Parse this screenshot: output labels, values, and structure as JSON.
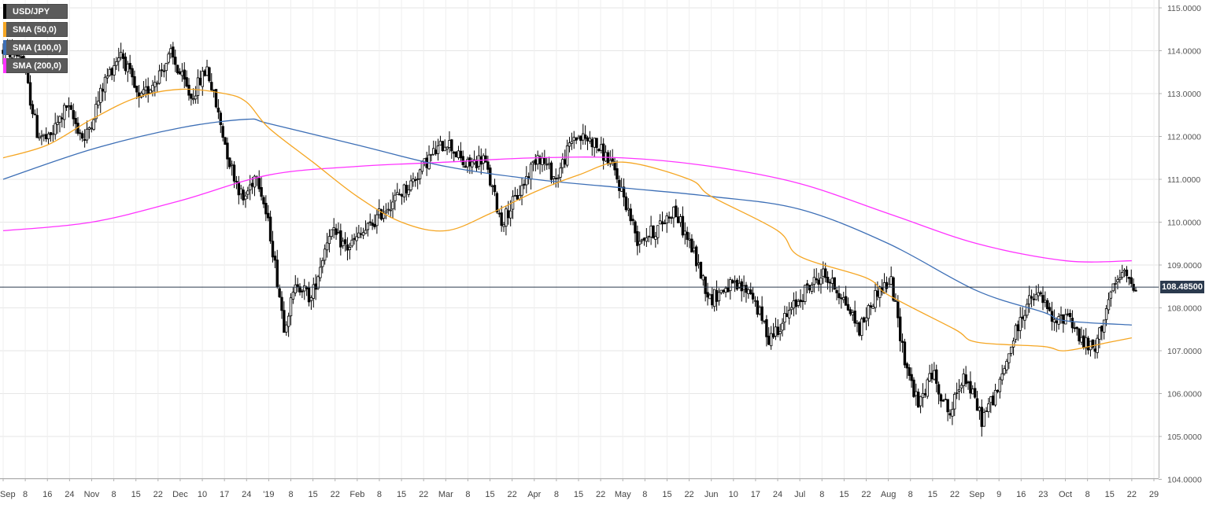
{
  "chart_data": {
    "type": "candlestick",
    "symbol": "USD/JPY",
    "timeframe": "daily",
    "legend": [
      {
        "label": "USD/JPY",
        "color": "#000000"
      },
      {
        "label": "SMA (50,0)",
        "color": "#f5a623"
      },
      {
        "label": "SMA (100,0)",
        "color": "#3d6fb6"
      },
      {
        "label": "SMA (200,0)",
        "color": "#ff33ff"
      }
    ],
    "legend_placement": "top-left",
    "y_axis": {
      "position": "right",
      "min": 104.0,
      "max": 115.0,
      "ticks": [
        "115.0000",
        "114.0000",
        "113.0000",
        "112.0000",
        "111.0000",
        "110.0000",
        "109.0000",
        "108.0000",
        "107.0000",
        "106.0000",
        "105.0000",
        "104.0000"
      ]
    },
    "x_axis": {
      "tick_labels": [
        "Sep",
        "8",
        "16",
        "24",
        "Nov",
        "8",
        "15",
        "22",
        "Dec",
        "10",
        "17",
        "24",
        "'19",
        "8",
        "15",
        "22",
        "Feb",
        "8",
        "15",
        "22",
        "Mar",
        "8",
        "15",
        "22",
        "Apr",
        "8",
        "15",
        "22",
        "May",
        "8",
        "15",
        "22",
        "Jun",
        "10",
        "17",
        "24",
        "Jul",
        "8",
        "15",
        "22",
        "Aug",
        "8",
        "15",
        "22",
        "Sep",
        "9",
        "16",
        "23",
        "Oct",
        "8",
        "15",
        "22",
        "29"
      ]
    },
    "grid": true,
    "current_price": "108.48500",
    "current_price_value": 108.485,
    "series": {
      "price_path": [
        {
          "i": 0,
          "v": 114.0
        },
        {
          "i": 8,
          "v": 113.9
        },
        {
          "i": 15,
          "v": 112.1
        },
        {
          "i": 20,
          "v": 111.9
        },
        {
          "i": 28,
          "v": 112.7
        },
        {
          "i": 36,
          "v": 111.9
        },
        {
          "i": 45,
          "v": 113.3
        },
        {
          "i": 52,
          "v": 114.0
        },
        {
          "i": 60,
          "v": 112.8
        },
        {
          "i": 68,
          "v": 113.4
        },
        {
          "i": 74,
          "v": 113.9
        },
        {
          "i": 83,
          "v": 112.9
        },
        {
          "i": 90,
          "v": 113.6
        },
        {
          "i": 100,
          "v": 111.4
        },
        {
          "i": 106,
          "v": 110.5
        },
        {
          "i": 112,
          "v": 111.2
        },
        {
          "i": 118,
          "v": 109.7
        },
        {
          "i": 124,
          "v": 107.6
        },
        {
          "i": 130,
          "v": 108.6
        },
        {
          "i": 136,
          "v": 108.2
        },
        {
          "i": 144,
          "v": 109.8
        },
        {
          "i": 152,
          "v": 109.4
        },
        {
          "i": 162,
          "v": 109.9
        },
        {
          "i": 170,
          "v": 110.4
        },
        {
          "i": 180,
          "v": 110.9
        },
        {
          "i": 188,
          "v": 111.5
        },
        {
          "i": 196,
          "v": 111.9
        },
        {
          "i": 204,
          "v": 111.3
        },
        {
          "i": 212,
          "v": 111.5
        },
        {
          "i": 220,
          "v": 110.0
        },
        {
          "i": 228,
          "v": 110.7
        },
        {
          "i": 236,
          "v": 111.6
        },
        {
          "i": 244,
          "v": 111.0
        },
        {
          "i": 252,
          "v": 112.0
        },
        {
          "i": 260,
          "v": 111.9
        },
        {
          "i": 268,
          "v": 111.4
        },
        {
          "i": 274,
          "v": 110.6
        },
        {
          "i": 280,
          "v": 109.6
        },
        {
          "i": 288,
          "v": 109.8
        },
        {
          "i": 296,
          "v": 110.3
        },
        {
          "i": 304,
          "v": 109.4
        },
        {
          "i": 312,
          "v": 108.2
        },
        {
          "i": 320,
          "v": 108.5
        },
        {
          "i": 330,
          "v": 108.4
        },
        {
          "i": 338,
          "v": 107.3
        },
        {
          "i": 346,
          "v": 107.8
        },
        {
          "i": 354,
          "v": 108.4
        },
        {
          "i": 362,
          "v": 108.8
        },
        {
          "i": 370,
          "v": 108.3
        },
        {
          "i": 378,
          "v": 107.5
        },
        {
          "i": 386,
          "v": 108.4
        },
        {
          "i": 392,
          "v": 108.6
        },
        {
          "i": 398,
          "v": 106.8
        },
        {
          "i": 404,
          "v": 105.7
        },
        {
          "i": 410,
          "v": 106.5
        },
        {
          "i": 418,
          "v": 105.5
        },
        {
          "i": 424,
          "v": 106.5
        },
        {
          "i": 432,
          "v": 105.4
        },
        {
          "i": 440,
          "v": 106.2
        },
        {
          "i": 446,
          "v": 107.3
        },
        {
          "i": 452,
          "v": 108.1
        },
        {
          "i": 458,
          "v": 108.3
        },
        {
          "i": 464,
          "v": 107.6
        },
        {
          "i": 470,
          "v": 107.9
        },
        {
          "i": 476,
          "v": 107.2
        },
        {
          "i": 482,
          "v": 107.0
        },
        {
          "i": 488,
          "v": 108.2
        },
        {
          "i": 494,
          "v": 108.8
        },
        {
          "i": 500,
          "v": 108.5
        }
      ],
      "sma_50": [
        {
          "x": "Sep",
          "y": 111.5
        },
        {
          "x": "16",
          "y": 111.8
        },
        {
          "x": "Nov",
          "y": 112.4
        },
        {
          "x": "15",
          "y": 112.9
        },
        {
          "x": "Dec",
          "y": 113.1
        },
        {
          "x": "17",
          "y": 113.0
        },
        {
          "x": "24",
          "y": 112.8
        },
        {
          "x": "'19",
          "y": 112.2
        },
        {
          "x": "15",
          "y": 111.4
        },
        {
          "x": "Feb",
          "y": 110.6
        },
        {
          "x": "15",
          "y": 110.0
        },
        {
          "x": "Mar",
          "y": 109.8
        },
        {
          "x": "15",
          "y": 110.2
        },
        {
          "x": "Apr",
          "y": 110.7
        },
        {
          "x": "15",
          "y": 111.1
        },
        {
          "x": "May",
          "y": 111.4
        },
        {
          "x": "22",
          "y": 111.0
        },
        {
          "x": "Jun",
          "y": 110.6
        },
        {
          "x": "24",
          "y": 109.8
        },
        {
          "x": "Jul",
          "y": 109.2
        },
        {
          "x": "22",
          "y": 108.7
        },
        {
          "x": "Aug",
          "y": 108.3
        },
        {
          "x": "22",
          "y": 107.5
        },
        {
          "x": "Sep",
          "y": 107.2
        },
        {
          "x": "23",
          "y": 107.1
        },
        {
          "x": "Oct",
          "y": 107.0
        },
        {
          "x": "15",
          "y": 107.2
        },
        {
          "x": "22",
          "y": 107.3
        }
      ],
      "sma_100": [
        {
          "x": "Sep",
          "y": 111.0
        },
        {
          "x": "Nov",
          "y": 111.7
        },
        {
          "x": "Dec",
          "y": 112.2
        },
        {
          "x": "24",
          "y": 112.4
        },
        {
          "x": "'19",
          "y": 112.3
        },
        {
          "x": "Feb",
          "y": 111.8
        },
        {
          "x": "Mar",
          "y": 111.3
        },
        {
          "x": "Apr",
          "y": 111.0
        },
        {
          "x": "May",
          "y": 110.8
        },
        {
          "x": "Jun",
          "y": 110.6
        },
        {
          "x": "Jul",
          "y": 110.3
        },
        {
          "x": "Aug",
          "y": 109.5
        },
        {
          "x": "Sep",
          "y": 108.4
        },
        {
          "x": "23",
          "y": 107.9
        },
        {
          "x": "Oct",
          "y": 107.7
        },
        {
          "x": "22",
          "y": 107.6
        }
      ],
      "sma_200": [
        {
          "x": "Sep",
          "y": 109.8
        },
        {
          "x": "Nov",
          "y": 110.0
        },
        {
          "x": "Dec",
          "y": 110.5
        },
        {
          "x": "'19",
          "y": 111.1
        },
        {
          "x": "Feb",
          "y": 111.3
        },
        {
          "x": "Mar",
          "y": 111.4
        },
        {
          "x": "Apr",
          "y": 111.5
        },
        {
          "x": "May",
          "y": 111.5
        },
        {
          "x": "Jun",
          "y": 111.3
        },
        {
          "x": "Jul",
          "y": 110.9
        },
        {
          "x": "Aug",
          "y": 110.2
        },
        {
          "x": "Sep",
          "y": 109.5
        },
        {
          "x": "Oct",
          "y": 109.1
        },
        {
          "x": "22",
          "y": 109.1
        }
      ]
    }
  }
}
